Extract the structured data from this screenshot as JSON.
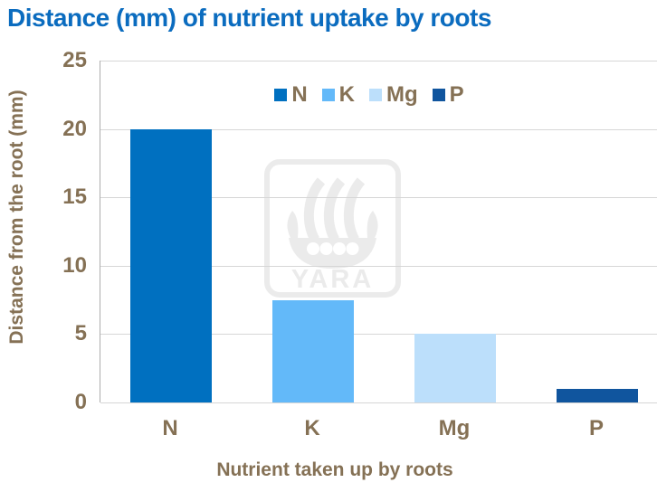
{
  "page": {
    "title": "Distance (mm) of nutrient uptake by roots",
    "title_color": "#0b6cbf",
    "background": "#ffffff",
    "watermark": {
      "brand": "YARA",
      "color": "#ebebeb"
    }
  },
  "chart_data": {
    "type": "bar",
    "title": "Distance (mm) of nutrient uptake by roots",
    "xlabel": "Nutrient taken up by roots",
    "ylabel": "Distance from the root (mm)",
    "categories": [
      "N",
      "K",
      "Mg",
      "P"
    ],
    "values": [
      20,
      7.5,
      5,
      1
    ],
    "bar_colors": [
      "#0070C0",
      "#63B9F9",
      "#BCDFFB",
      "#10559E"
    ],
    "ylim": [
      0,
      25
    ],
    "yticks": [
      0,
      5,
      10,
      15,
      20,
      25
    ],
    "grid": true,
    "legend": {
      "position": "top-center",
      "entries": [
        {
          "label": "N",
          "color": "#0070C0"
        },
        {
          "label": "K",
          "color": "#63B9F9"
        },
        {
          "label": "Mg",
          "color": "#BCDFFB"
        },
        {
          "label": "P",
          "color": "#10559E"
        }
      ]
    },
    "text_color": "#857155",
    "gridline_color": "#d6d6d6",
    "axis_color": "#adadad"
  }
}
